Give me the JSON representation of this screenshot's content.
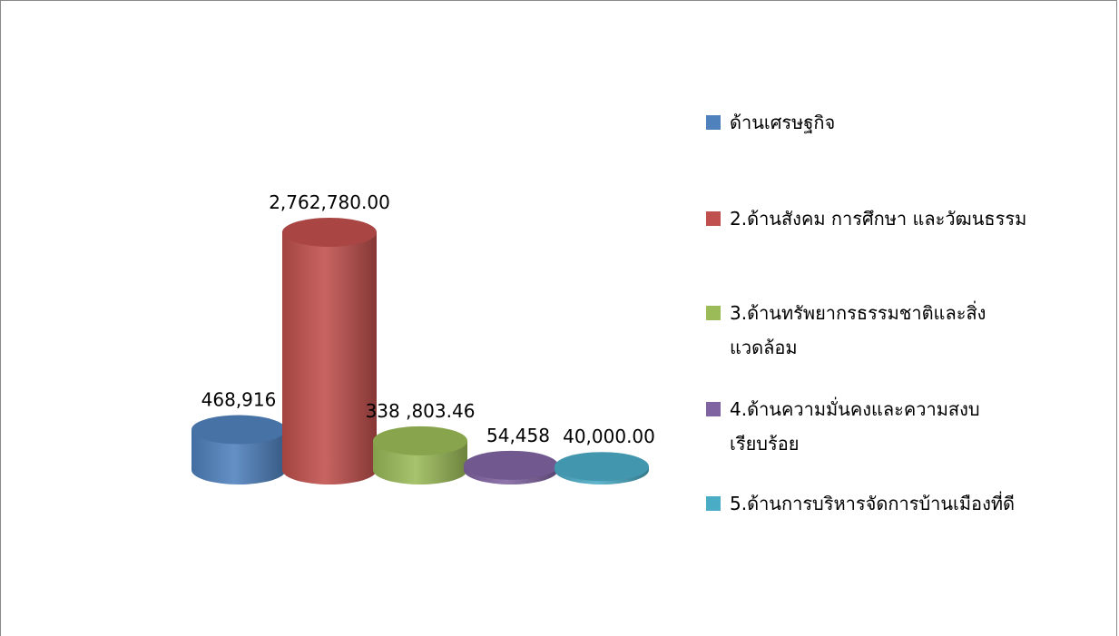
{
  "chart_data": {
    "type": "bar3d",
    "categories": [
      "ด้านเศรษฐกิจ",
      "2.ด้านสังคม การศึกษา และวัฒนธรรม",
      "3.ด้านทรัพยากรธรรมชาติและสิ่งแวดล้อม",
      "4.ด้านความมั่นคงและความสงบเรียบร้อย",
      "5.ด้านการบริหารจัดการบ้านเมืองที่ดี"
    ],
    "values": [
      468916,
      2762780.0,
      338803.46,
      54458,
      40000.0
    ],
    "value_labels": [
      "468,916",
      "2,762,780.00",
      "338 ,803.46",
      "54,458",
      "40,000.00"
    ],
    "colors": [
      "#4f81bd",
      "#c0504d",
      "#9bbb59",
      "#8064a2",
      "#4bacc6"
    ],
    "legend": "right"
  }
}
